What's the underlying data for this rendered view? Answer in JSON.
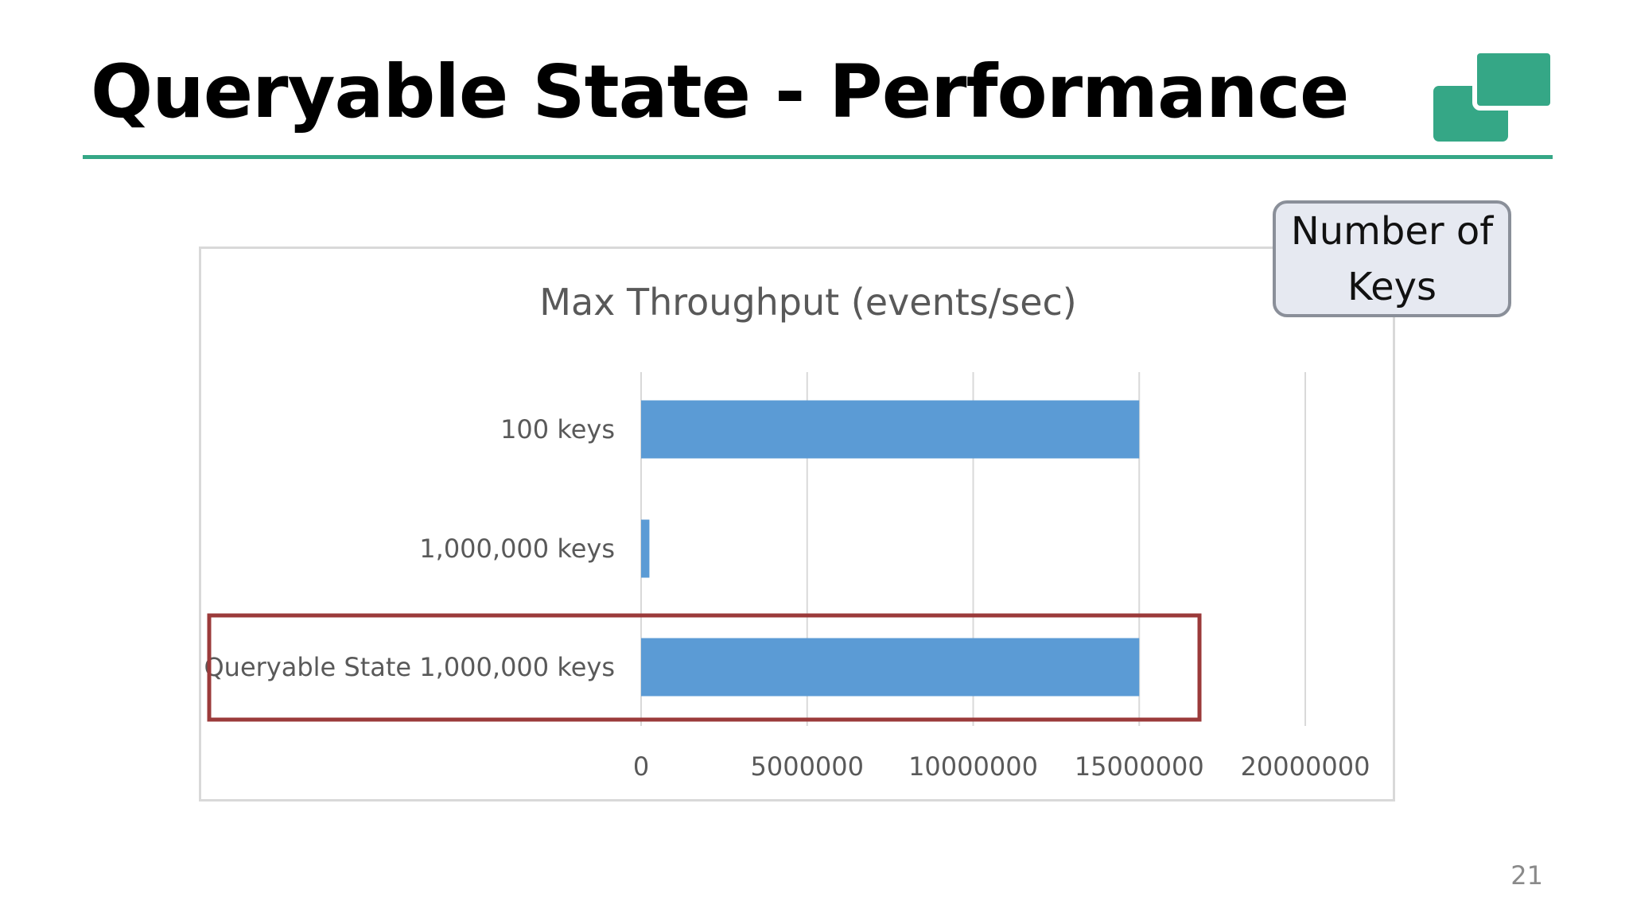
{
  "slide": {
    "title": "Queryable State - Performance",
    "page_number": "21",
    "accent_color": "#35a786"
  },
  "callout": {
    "text": "Number of Keys"
  },
  "highlight": {
    "category": "Queryable State 1,000,000 keys",
    "color": "#9b3a3a"
  },
  "chart_data": {
    "type": "bar",
    "orientation": "horizontal",
    "title": "Max Throughput (events/sec)",
    "xlabel": "",
    "ylabel": "",
    "categories": [
      "100 keys",
      "1,000,000 keys",
      "Queryable State 1,000,000 keys"
    ],
    "values": [
      15000000,
      250000,
      15000000
    ],
    "xlim": [
      0,
      20000000
    ],
    "ticks": [
      "0",
      "5000000",
      "10000000",
      "15000000",
      "20000000"
    ],
    "tick_values": [
      0,
      5000000,
      10000000,
      15000000,
      20000000
    ],
    "grid": true,
    "legend": "none",
    "bar_color": "#5b9bd5"
  }
}
